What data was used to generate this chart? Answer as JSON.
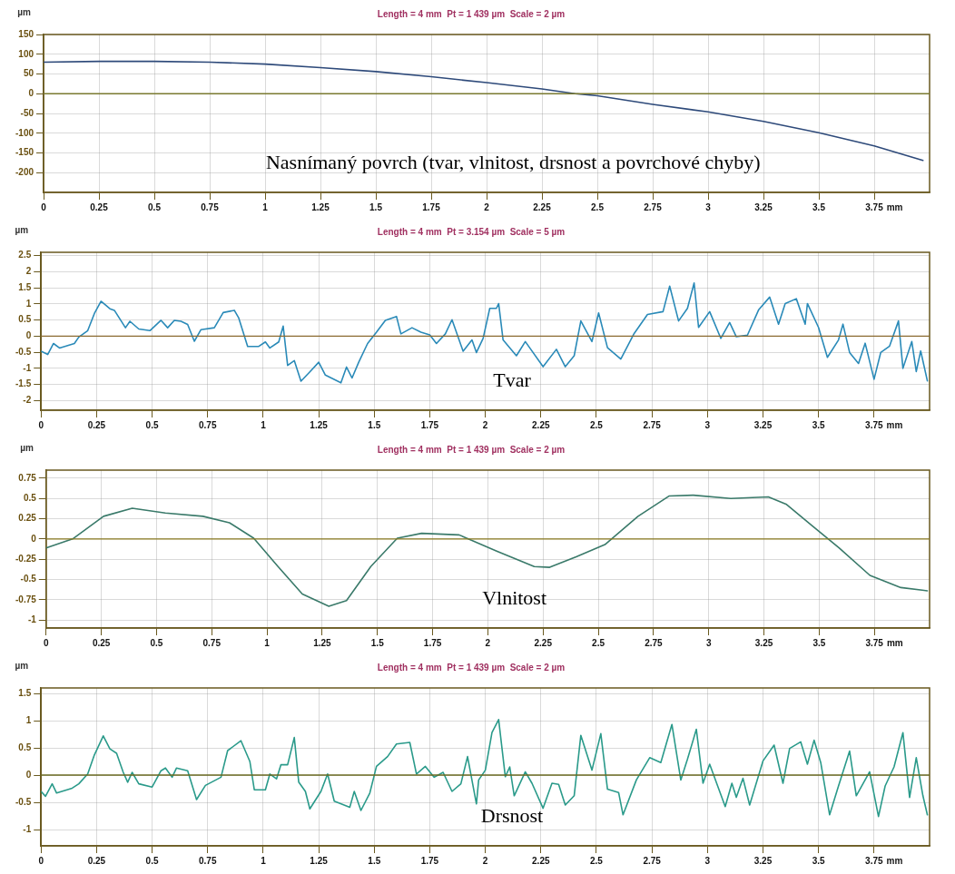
{
  "chart_data": [
    {
      "type": "line",
      "title": "Length = 4 mm  Pt = 1 439 µm  Scale = 2 µm",
      "ylabel": "µm",
      "color": "#2e4a7a",
      "x": [
        0,
        0.25,
        0.5,
        0.75,
        1,
        1.25,
        1.5,
        1.75,
        2,
        2.25,
        2.4,
        2.5,
        2.75,
        3,
        3.25,
        3.5,
        3.75,
        3.97
      ],
      "values": [
        80,
        82,
        82,
        80,
        75,
        66,
        56,
        43,
        28,
        12,
        0,
        -5,
        -27,
        -46,
        -70,
        -99,
        -132,
        -169
      ],
      "xlim": [
        0,
        4
      ],
      "xticks": [
        0,
        0.25,
        0.5,
        0.75,
        1,
        1.25,
        1.5,
        1.75,
        2,
        2.25,
        2.5,
        2.75,
        3,
        3.25,
        3.5,
        3.75
      ],
      "xlabel": "mm",
      "ylim": [
        -250,
        150
      ],
      "yticks": [
        150,
        100,
        50,
        0,
        -50,
        -100,
        -150,
        -200
      ],
      "grid": true,
      "ref_lines": [
        {
          "axis": "y",
          "value": 0,
          "color": "#7a7a30"
        }
      ],
      "annotations": [
        "Nasnímaný povrch (tvar, vlnitost, drsnost a povrchové chyby)"
      ]
    },
    {
      "type": "line",
      "title": "Length = 4 mm  Pt = 3.154 µm  Scale = 5 µm",
      "ylabel": "µm",
      "color": "#2a8ab8",
      "x": [
        0,
        0.03,
        0.056,
        0.083,
        0.15,
        0.17,
        0.21,
        0.24,
        0.27,
        0.31,
        0.33,
        0.38,
        0.4,
        0.44,
        0.49,
        0.54,
        0.57,
        0.6,
        0.63,
        0.66,
        0.69,
        0.72,
        0.78,
        0.82,
        0.87,
        0.89,
        0.93,
        0.98,
        1.01,
        1.03,
        1.07,
        1.09,
        1.11,
        1.14,
        1.17,
        1.21,
        1.25,
        1.28,
        1.35,
        1.375,
        1.4,
        1.43,
        1.47,
        1.51,
        1.55,
        1.6,
        1.62,
        1.67,
        1.71,
        1.75,
        1.78,
        1.82,
        1.85,
        1.9,
        1.94,
        1.96,
        1.99,
        2.02,
        2.05,
        2.06,
        2.08,
        2.14,
        2.18,
        2.26,
        2.32,
        2.36,
        2.4,
        2.43,
        2.48,
        2.51,
        2.55,
        2.61,
        2.67,
        2.73,
        2.8,
        2.83,
        2.87,
        2.91,
        2.94,
        2.96,
        3.01,
        3.06,
        3.1,
        3.13,
        3.18,
        3.23,
        3.28,
        3.32,
        3.35,
        3.4,
        3.44,
        3.45,
        3.5,
        3.54,
        3.59,
        3.61,
        3.64,
        3.68,
        3.71,
        3.75,
        3.78,
        3.82,
        3.86,
        3.88,
        3.92,
        3.94,
        3.96,
        3.99
      ],
      "values": [
        -0.47,
        -0.57,
        -0.23,
        -0.37,
        -0.23,
        -0.03,
        0.17,
        0.7,
        1.08,
        0.85,
        0.8,
        0.26,
        0.46,
        0.22,
        0.17,
        0.49,
        0.26,
        0.49,
        0.46,
        0.36,
        -0.16,
        0.2,
        0.26,
        0.73,
        0.8,
        0.56,
        -0.32,
        -0.32,
        -0.18,
        -0.37,
        -0.18,
        0.31,
        -0.91,
        -0.76,
        -1.4,
        -1.11,
        -0.81,
        -1.21,
        -1.45,
        -0.96,
        -1.3,
        -0.81,
        -0.23,
        0.12,
        0.49,
        0.61,
        0.07,
        0.26,
        0.12,
        0.04,
        -0.23,
        0.07,
        0.51,
        -0.47,
        -0.12,
        -0.51,
        -0.07,
        0.86,
        0.86,
        1.01,
        -0.12,
        -0.61,
        -0.17,
        -0.95,
        -0.41,
        -0.95,
        -0.61,
        0.47,
        -0.17,
        0.72,
        -0.36,
        -0.71,
        0.08,
        0.67,
        0.76,
        1.55,
        0.47,
        0.86,
        1.65,
        0.27,
        0.76,
        -0.07,
        0.42,
        -0.02,
        0.03,
        0.81,
        1.21,
        0.37,
        1.01,
        1.16,
        0.37,
        1.01,
        0.27,
        -0.66,
        -0.12,
        0.37,
        -0.51,
        -0.85,
        -0.22,
        -1.34,
        -0.51,
        -0.31,
        0.47,
        -1.0,
        -0.17,
        -1.1,
        -0.46,
        -1.39
      ],
      "xlim": [
        0,
        4
      ],
      "xticks": [
        0,
        0.25,
        0.5,
        0.75,
        1,
        1.25,
        1.5,
        1.75,
        2,
        2.25,
        2.5,
        2.75,
        3,
        3.25,
        3.5,
        3.75
      ],
      "xlabel": "mm",
      "ylim": [
        -2.3,
        2.6
      ],
      "yticks": [
        2.5,
        2,
        1.5,
        1,
        0.5,
        0,
        -0.5,
        -1,
        -1.5,
        -2
      ],
      "grid": true,
      "ref_lines": [
        {
          "axis": "y",
          "value": 0,
          "color": "#8a6a30"
        }
      ],
      "annotations": [
        "Tvar"
      ]
    },
    {
      "type": "line",
      "title": "Length = 4 mm  Pt = 1 439 µm  Scale = 2 µm",
      "ylabel": "µm",
      "color": "#3a7a6a",
      "x": [
        0,
        0.12,
        0.26,
        0.39,
        0.54,
        0.71,
        0.83,
        0.94,
        1.05,
        1.16,
        1.28,
        1.36,
        1.47,
        1.59,
        1.7,
        1.87,
        2.04,
        2.21,
        2.28,
        2.4,
        2.53,
        2.68,
        2.82,
        2.93,
        3.1,
        3.27,
        3.35,
        3.47,
        3.59,
        3.73,
        3.87,
        3.99
      ],
      "values": [
        -0.11,
        0,
        0.28,
        0.38,
        0.32,
        0.28,
        0.2,
        0.01,
        -0.34,
        -0.68,
        -0.83,
        -0.76,
        -0.34,
        0.01,
        0.07,
        0.05,
        -0.15,
        -0.34,
        -0.35,
        -0.22,
        -0.07,
        0.28,
        0.53,
        0.54,
        0.5,
        0.52,
        0.43,
        0.16,
        -0.11,
        -0.45,
        -0.6,
        -0.64
      ],
      "xlim": [
        0,
        4
      ],
      "xticks": [
        0,
        0.25,
        0.5,
        0.75,
        1,
        1.25,
        1.5,
        1.75,
        2,
        2.25,
        2.5,
        2.75,
        3,
        3.25,
        3.5,
        3.75
      ],
      "xlabel": "mm",
      "ylim": [
        -1.1,
        0.85
      ],
      "yticks": [
        0.75,
        0.5,
        0.25,
        0,
        -0.25,
        -0.5,
        -0.75,
        -1
      ],
      "grid": true,
      "ref_lines": [
        {
          "axis": "y",
          "value": 0,
          "color": "#8a7a20"
        }
      ],
      "annotations": [
        "Vlnitost"
      ]
    },
    {
      "type": "line",
      "title": "Length = 4 mm  Pt = 1 439 µm  Scale = 2 µm",
      "ylabel": "µm",
      "color": "#2a9a8a",
      "x": [
        0,
        0.02,
        0.05,
        0.07,
        0.14,
        0.17,
        0.21,
        0.24,
        0.28,
        0.31,
        0.34,
        0.37,
        0.39,
        0.41,
        0.44,
        0.5,
        0.54,
        0.56,
        0.59,
        0.61,
        0.66,
        0.7,
        0.74,
        0.81,
        0.84,
        0.9,
        0.94,
        0.96,
        1.01,
        1.03,
        1.06,
        1.08,
        1.11,
        1.14,
        1.16,
        1.19,
        1.21,
        1.26,
        1.29,
        1.32,
        1.39,
        1.41,
        1.44,
        1.48,
        1.51,
        1.56,
        1.6,
        1.66,
        1.69,
        1.73,
        1.77,
        1.81,
        1.85,
        1.89,
        1.92,
        1.96,
        1.97,
        2.0,
        2.03,
        2.06,
        2.09,
        2.11,
        2.13,
        2.18,
        2.21,
        2.26,
        2.3,
        2.33,
        2.36,
        2.4,
        2.43,
        2.48,
        2.52,
        2.55,
        2.6,
        2.62,
        2.68,
        2.74,
        2.79,
        2.84,
        2.88,
        2.91,
        2.95,
        2.98,
        3.01,
        3.08,
        3.11,
        3.13,
        3.16,
        3.19,
        3.25,
        3.3,
        3.34,
        3.37,
        3.42,
        3.45,
        3.48,
        3.51,
        3.55,
        3.59,
        3.64,
        3.67,
        3.73,
        3.77,
        3.8,
        3.84,
        3.88,
        3.91,
        3.94,
        3.97,
        3.99
      ],
      "values": [
        -0.3,
        -0.39,
        -0.16,
        -0.33,
        -0.24,
        -0.16,
        0.02,
        0.37,
        0.72,
        0.48,
        0.4,
        0.05,
        -0.13,
        0.05,
        -0.16,
        -0.22,
        0.08,
        0.13,
        -0.04,
        0.13,
        0.08,
        -0.45,
        -0.19,
        -0.04,
        0.45,
        0.63,
        0.25,
        -0.27,
        -0.27,
        0.02,
        -0.07,
        0.19,
        0.19,
        0.69,
        -0.13,
        -0.3,
        -0.62,
        -0.3,
        0.02,
        -0.48,
        -0.59,
        -0.3,
        -0.65,
        -0.33,
        0.16,
        0.34,
        0.57,
        0.6,
        0.02,
        0.16,
        -0.04,
        0.05,
        -0.3,
        -0.16,
        0.34,
        -0.53,
        -0.09,
        0.09,
        0.78,
        1.02,
        -0.03,
        0.15,
        -0.38,
        0.06,
        -0.15,
        -0.61,
        -0.15,
        -0.17,
        -0.55,
        -0.38,
        0.73,
        0.09,
        0.76,
        -0.26,
        -0.32,
        -0.73,
        -0.09,
        0.32,
        0.23,
        0.93,
        -0.09,
        0.29,
        0.84,
        -0.15,
        0.2,
        -0.58,
        -0.15,
        -0.41,
        -0.06,
        -0.55,
        0.26,
        0.55,
        -0.15,
        0.49,
        0.61,
        0.2,
        0.64,
        0.23,
        -0.73,
        -0.2,
        0.44,
        -0.38,
        0.06,
        -0.76,
        -0.2,
        0.15,
        0.78,
        -0.41,
        0.32,
        -0.38,
        -0.73
      ],
      "xlim": [
        0,
        4
      ],
      "xticks": [
        0,
        0.25,
        0.5,
        0.75,
        1,
        1.25,
        1.5,
        1.75,
        2,
        2.25,
        2.5,
        2.75,
        3,
        3.25,
        3.5,
        3.75
      ],
      "xlabel": "mm",
      "ylim": [
        -1.3,
        1.6
      ],
      "yticks": [
        1.5,
        1,
        0.5,
        0,
        -0.5,
        -1
      ],
      "grid": true,
      "ref_lines": [
        {
          "axis": "y",
          "value": 0,
          "color": "#6a6a20"
        }
      ],
      "annotations": [
        "Drsnost"
      ]
    }
  ]
}
